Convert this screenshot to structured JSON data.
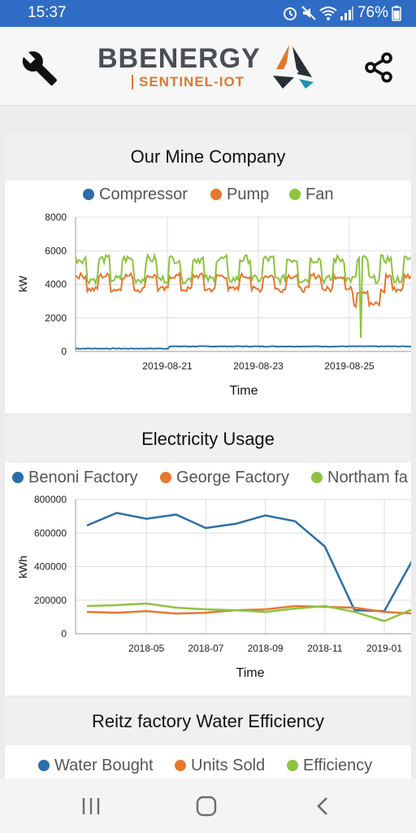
{
  "status_bar": {
    "time": "15:37",
    "battery": "76%"
  },
  "app_bar": {
    "logo_main": "BBENERGY",
    "logo_sub": "SENTINEL-IOT"
  },
  "sections": [
    {
      "title": "Our Mine Company"
    },
    {
      "title": "Electricity Usage"
    },
    {
      "title": "Reitz factory Water Efficiency"
    }
  ],
  "chart_data": [
    {
      "type": "line",
      "title": "Our Mine Company",
      "xlabel": "Time",
      "ylabel": "kW",
      "ylim": [
        0,
        8000
      ],
      "yticks": [
        "0",
        "2000",
        "4000",
        "6000",
        "8000"
      ],
      "xticks": [
        "2019-08-21",
        "2019-08-23",
        "2019-08-25"
      ],
      "legend": "top",
      "series": [
        {
          "name": "Compressor",
          "color": "#2a6fa8"
        },
        {
          "name": "Pump",
          "color": "#e8772e"
        },
        {
          "name": "Fan",
          "color": "#8cc43f"
        }
      ]
    },
    {
      "type": "line",
      "title": "Electricity Usage",
      "xlabel": "Time",
      "ylabel": "kWh",
      "ylim": [
        0,
        800000
      ],
      "yticks": [
        "0",
        "200000",
        "400000",
        "600000",
        "800000"
      ],
      "xticks": [
        "2018-05",
        "2018-07",
        "2018-09",
        "2018-11",
        "2019-01"
      ],
      "legend": "top",
      "categories": [
        "2018-03",
        "2018-04",
        "2018-05",
        "2018-06",
        "2018-07",
        "2018-08",
        "2018-09",
        "2018-10",
        "2018-11",
        "2018-12",
        "2019-01",
        "2019-02"
      ],
      "series": [
        {
          "name": "Benoni Factory",
          "color": "#2a6fa8",
          "values": [
            645000,
            720000,
            685000,
            710000,
            630000,
            655000,
            705000,
            670000,
            520000,
            140000,
            135000,
            455000
          ]
        },
        {
          "name": "George Factory",
          "color": "#e8772e",
          "values": [
            130000,
            125000,
            135000,
            120000,
            125000,
            140000,
            145000,
            165000,
            160000,
            155000,
            130000,
            120000
          ]
        },
        {
          "name": "Northam fa",
          "color": "#8cc43f",
          "values": [
            165000,
            170000,
            180000,
            155000,
            145000,
            140000,
            130000,
            150000,
            165000,
            130000,
            75000,
            150000
          ]
        }
      ]
    },
    {
      "type": "line",
      "title": "Reitz factory Water Efficiency",
      "legend": "top",
      "series": [
        {
          "name": "Water Bought",
          "color": "#2a6fa8"
        },
        {
          "name": "Units Sold",
          "color": "#e8772e"
        },
        {
          "name": "Efficiency",
          "color": "#8cc43f"
        }
      ]
    }
  ]
}
